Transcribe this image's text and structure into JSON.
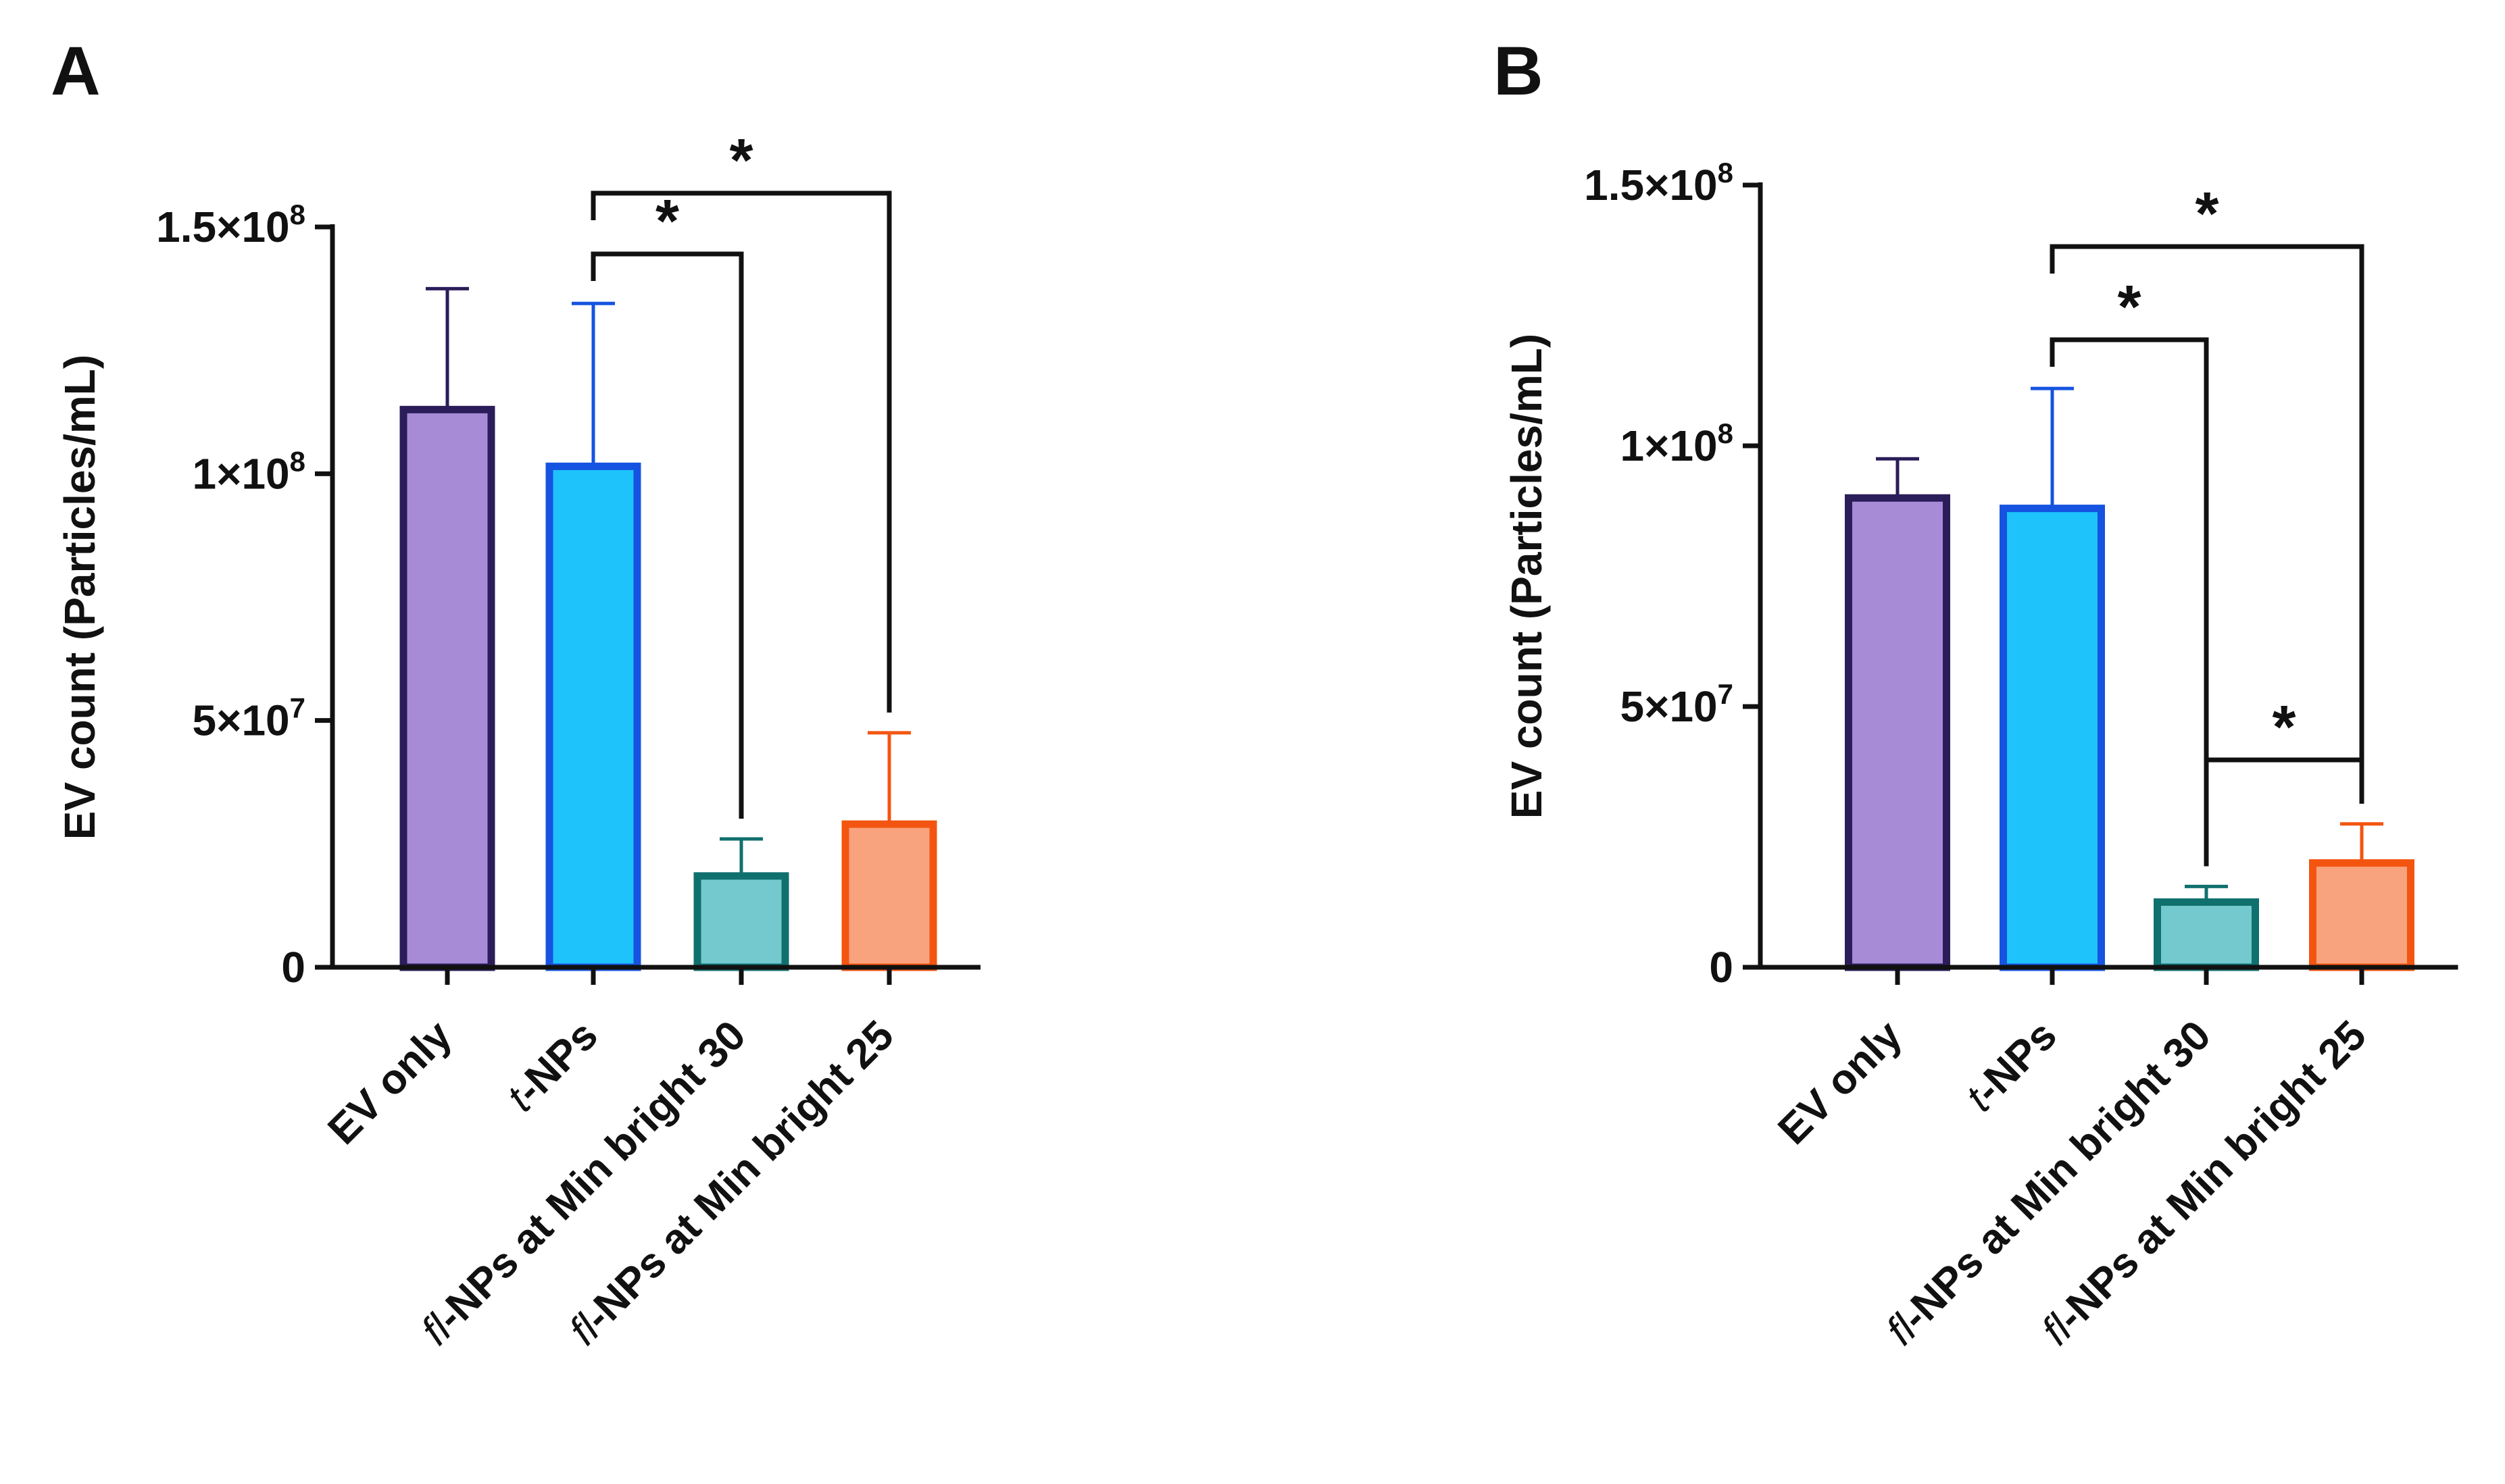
{
  "chart_data": [
    {
      "panel": "A",
      "type": "bar",
      "ylabel": "EV count (Particles/mL)",
      "ylim": [
        0,
        150000000
      ],
      "yticks": [
        {
          "value": 0,
          "base": "0",
          "exp": ""
        },
        {
          "value": 50000000,
          "base": "5×10",
          "exp": "7"
        },
        {
          "value": 100000000,
          "base": "1×10",
          "exp": "8"
        },
        {
          "value": 150000000,
          "base": "1.5×10",
          "exp": "8"
        }
      ],
      "categories": [
        {
          "prefix": "",
          "rest": "EV only"
        },
        {
          "prefix": "t",
          "rest": "-NPs"
        },
        {
          "prefix": "fl",
          "rest": "-NPs at Min bright 30"
        },
        {
          "prefix": "fl",
          "rest": "-NPs at Min bright 25"
        }
      ],
      "values": [
        113000000,
        101500000,
        18500000,
        29000000
      ],
      "errors": [
        24500000,
        33000000,
        7500000,
        18500000
      ],
      "significance": [
        {
          "from": 1,
          "to": 2,
          "label": "*"
        },
        {
          "from": 1,
          "to": 3,
          "label": "*"
        }
      ]
    },
    {
      "panel": "B",
      "type": "bar",
      "ylabel": "EV count (Particles/mL)",
      "ylim": [
        0,
        150000000
      ],
      "yticks": [
        {
          "value": 0,
          "base": "0",
          "exp": ""
        },
        {
          "value": 50000000,
          "base": "5×10",
          "exp": "7"
        },
        {
          "value": 100000000,
          "base": "1×10",
          "exp": "8"
        },
        {
          "value": 150000000,
          "base": "1.5×10",
          "exp": "8"
        }
      ],
      "categories": [
        {
          "prefix": "",
          "rest": "EV only"
        },
        {
          "prefix": "t",
          "rest": "-NPs"
        },
        {
          "prefix": "fl",
          "rest": "-NPs at Min bright 30"
        },
        {
          "prefix": "fl",
          "rest": "-NPs at Min bright 25"
        }
      ],
      "values": [
        90000000,
        88000000,
        12500000,
        20000000
      ],
      "errors": [
        7500000,
        23000000,
        3000000,
        7500000
      ],
      "significance": [
        {
          "from": 1,
          "to": 2,
          "label": "*"
        },
        {
          "from": 1,
          "to": 3,
          "label": "*"
        },
        {
          "from": 2,
          "to": 3,
          "label": "*"
        }
      ]
    }
  ],
  "style": {
    "fills": [
      "#a78bd6",
      "#1ec3fc",
      "#74c9cf",
      "#f9a37e"
    ],
    "edges": [
      "#2b1d59",
      "#1553e0",
      "#10706e",
      "#f35510"
    ],
    "axis_color": "#111111"
  }
}
